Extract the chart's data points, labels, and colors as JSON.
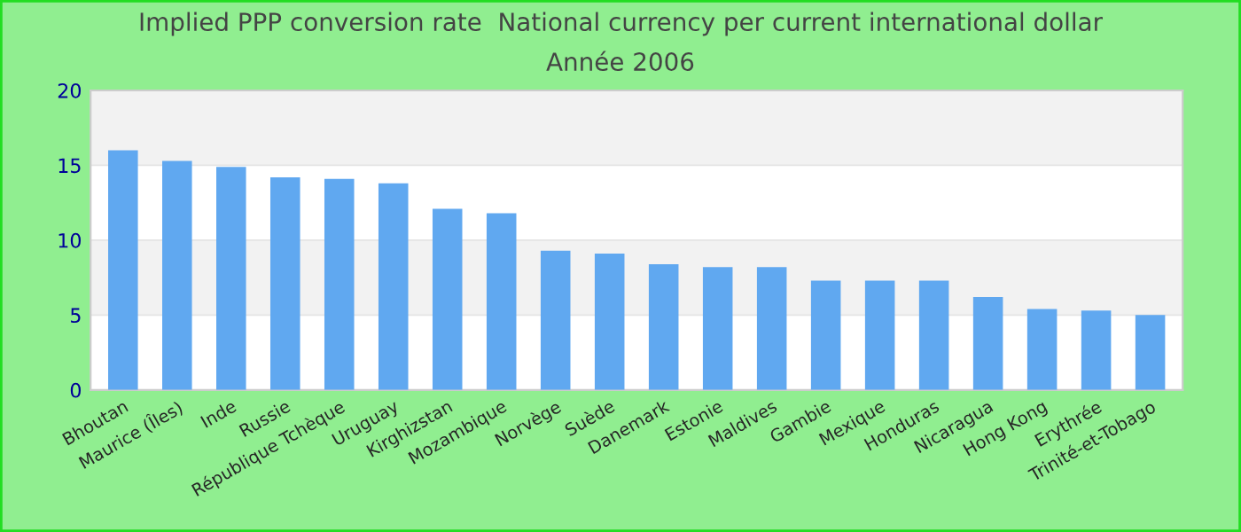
{
  "chart_data": {
    "type": "bar",
    "title": "Implied PPP conversion rate  National currency per current international dollar",
    "subtitle": "Année 2006",
    "categories": [
      "Bhoutan",
      "Maurice (Îles)",
      "Inde",
      "Russie",
      "République Tchèque",
      "Uruguay",
      "Kirghizstan",
      "Mozambique",
      "Norvège",
      "Suède",
      "Danemark",
      "Estonie",
      "Maldives",
      "Gambie",
      "Mexique",
      "Honduras",
      "Nicaragua",
      "Hong Kong",
      "Erythrée",
      "Trinité-et-Tobago"
    ],
    "values": [
      16.0,
      15.3,
      14.9,
      14.2,
      14.1,
      13.8,
      12.1,
      11.8,
      9.3,
      9.1,
      8.4,
      8.2,
      8.2,
      7.3,
      7.3,
      7.3,
      6.2,
      5.4,
      5.3,
      5.0
    ],
    "color": "#60a8f0",
    "ylim": [
      0,
      20
    ],
    "yticks": [
      0,
      5,
      10,
      15,
      20
    ],
    "grid": "y"
  }
}
